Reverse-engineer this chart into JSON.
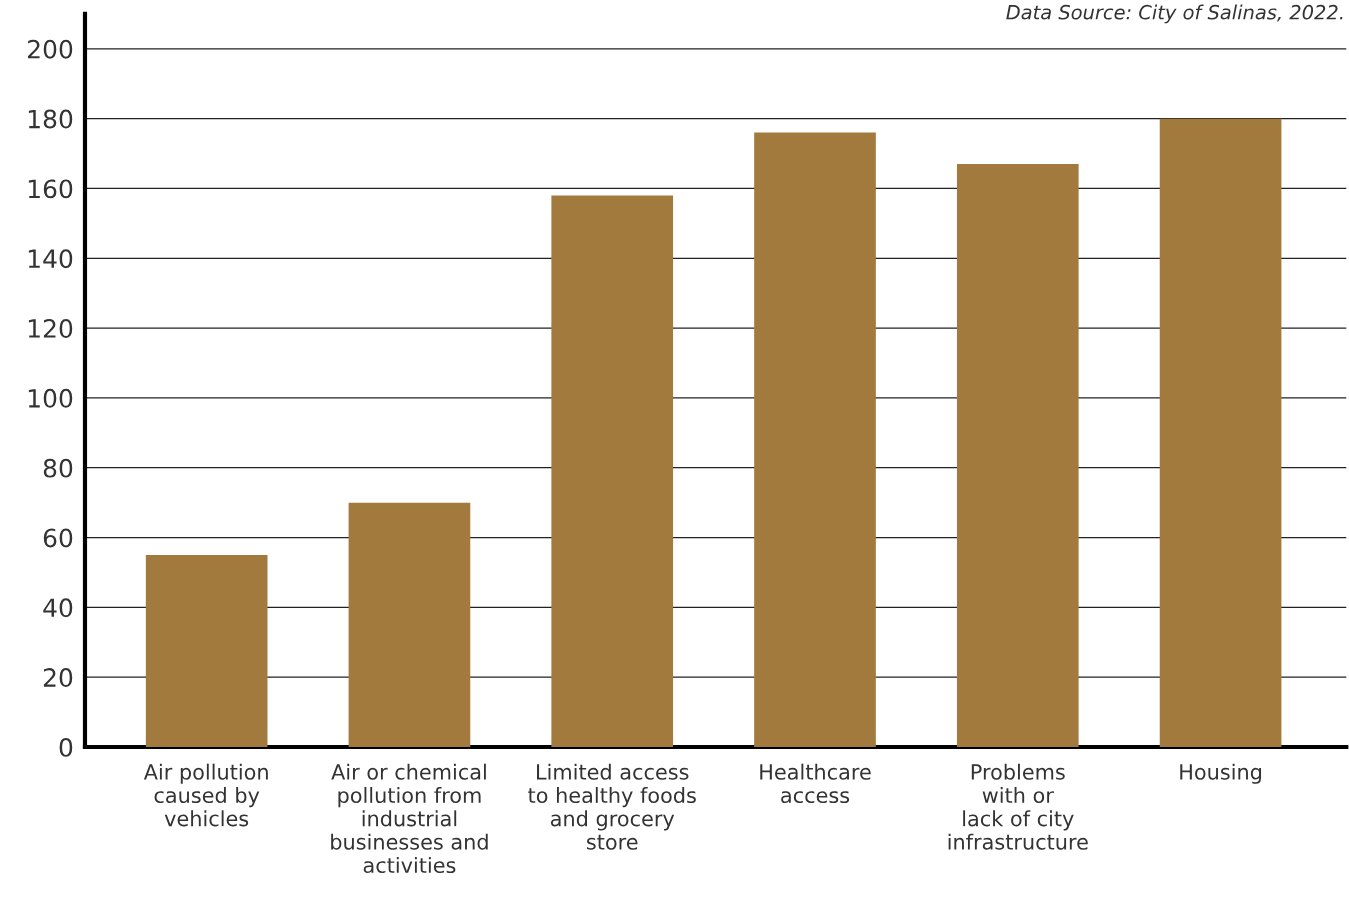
{
  "chart_data": {
    "type": "bar",
    "categories": [
      "Air pollution\ncaused by\nvehicles",
      "Air or chemical\npollution from\nindustrial\nbusinesses and\nactivities",
      "Limited access\nto healthy foods\nand grocery\nstore",
      "Healthcare\naccess",
      "Problems\nwith or\nlack of city\ninfrastructure",
      "Housing"
    ],
    "values": [
      55,
      70,
      158,
      176,
      167,
      180
    ],
    "color": "#a37a3e",
    "ylim": [
      0,
      210
    ],
    "yticks": [
      0,
      20,
      40,
      60,
      80,
      100,
      120,
      140,
      160,
      180,
      200
    ],
    "grid": "y",
    "annotations": [
      "Data Source: City of Salinas, 2022."
    ]
  }
}
